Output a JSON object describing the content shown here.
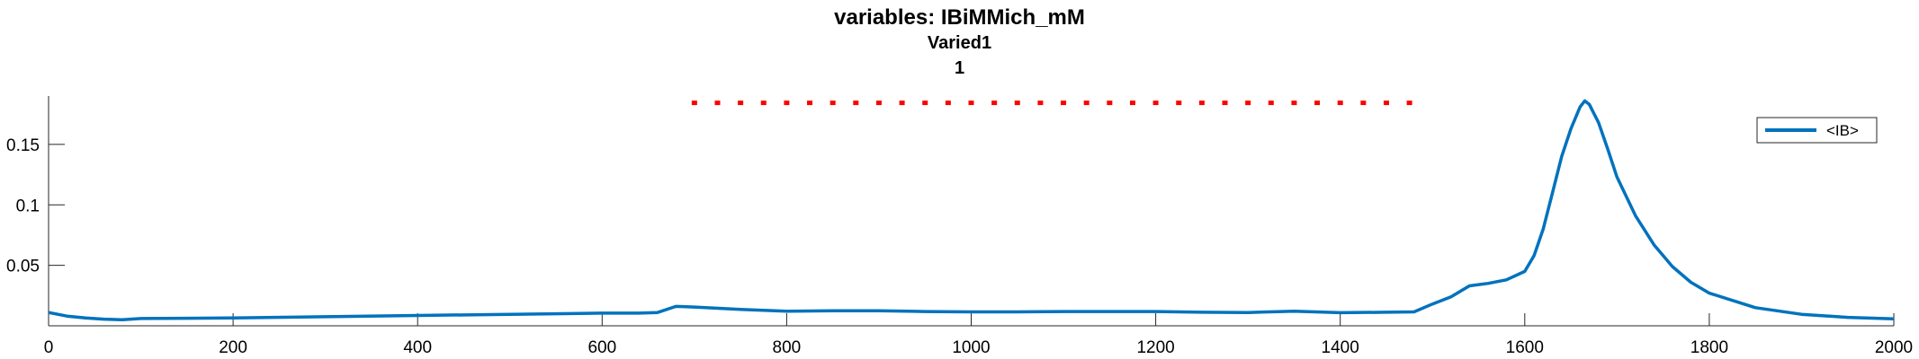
{
  "titles": {
    "line1": "variables: IBiMMich_mM",
    "line2": "Varied1",
    "line3": "1"
  },
  "colors": {
    "series": "#0072BD",
    "marker_dots": "#FF0000",
    "axis": "#262626"
  },
  "chart_data": {
    "type": "line",
    "title": "variables: IBiMMich_mM",
    "subtitle": [
      "Varied1",
      "1"
    ],
    "xlabel": "",
    "ylabel": "",
    "xlim": [
      0,
      2000
    ],
    "ylim": [
      0,
      0.19
    ],
    "x_ticks": [
      0,
      200,
      400,
      600,
      800,
      1000,
      1200,
      1400,
      1600,
      1800,
      2000
    ],
    "x_tick_labels": [
      "0",
      "200",
      "400",
      "600",
      "800",
      "1000",
      "1200",
      "1400",
      "1600",
      "1800",
      "2000"
    ],
    "y_ticks": [
      0.05,
      0.1,
      0.15
    ],
    "y_tick_labels": [
      "0.05",
      "0.1",
      "0.15"
    ],
    "grid": false,
    "legend": {
      "placement": "top-right",
      "entries": [
        "<IB>"
      ]
    },
    "series": [
      {
        "name": "<IB>",
        "x": [
          0,
          20,
          40,
          60,
          80,
          100,
          150,
          200,
          300,
          400,
          500,
          600,
          640,
          660,
          680,
          700,
          750,
          800,
          850,
          900,
          950,
          1000,
          1050,
          1100,
          1150,
          1200,
          1250,
          1300,
          1350,
          1400,
          1450,
          1480,
          1500,
          1520,
          1540,
          1560,
          1580,
          1600,
          1610,
          1620,
          1630,
          1640,
          1650,
          1660,
          1665,
          1670,
          1680,
          1690,
          1700,
          1720,
          1740,
          1760,
          1780,
          1800,
          1850,
          1900,
          1950,
          2000
        ],
        "y": [
          0.011,
          0.008,
          0.0065,
          0.0055,
          0.005,
          0.006,
          0.0062,
          0.0065,
          0.0075,
          0.0085,
          0.0095,
          0.0105,
          0.0105,
          0.011,
          0.016,
          0.0155,
          0.0135,
          0.012,
          0.0125,
          0.0125,
          0.0118,
          0.0115,
          0.0115,
          0.0118,
          0.0118,
          0.0118,
          0.0112,
          0.011,
          0.012,
          0.0108,
          0.0112,
          0.0115,
          0.018,
          0.024,
          0.033,
          0.035,
          0.038,
          0.045,
          0.058,
          0.08,
          0.11,
          0.14,
          0.163,
          0.181,
          0.186,
          0.183,
          0.168,
          0.146,
          0.123,
          0.091,
          0.067,
          0.049,
          0.036,
          0.027,
          0.015,
          0.0095,
          0.007,
          0.0058
        ]
      }
    ],
    "marker_series": {
      "x": [
        700,
        725,
        750,
        775,
        800,
        825,
        850,
        875,
        900,
        925,
        950,
        975,
        1000,
        1025,
        1050,
        1075,
        1100,
        1125,
        1150,
        1175,
        1200,
        1225,
        1250,
        1275,
        1300,
        1325,
        1350,
        1375,
        1400,
        1425,
        1450,
        1475
      ],
      "y": 0.184
    }
  }
}
